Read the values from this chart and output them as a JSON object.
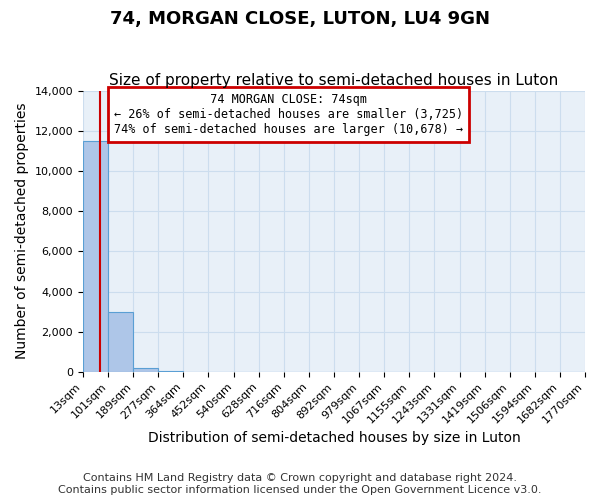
{
  "title": "74, MORGAN CLOSE, LUTON, LU4 9GN",
  "subtitle": "Size of property relative to semi-detached houses in Luton",
  "xlabel": "Distribution of semi-detached houses by size in Luton",
  "ylabel": "Number of semi-detached properties",
  "bin_edges": [
    13,
    101,
    189,
    277,
    364,
    452,
    540,
    628,
    716,
    804,
    892,
    979,
    1067,
    1155,
    1243,
    1331,
    1419,
    1506,
    1594,
    1682,
    1770
  ],
  "bin_heights": [
    11500,
    3000,
    200,
    30,
    10,
    5,
    3,
    2,
    2,
    1,
    1,
    1,
    1,
    1,
    0,
    0,
    0,
    0,
    0,
    0
  ],
  "bar_color": "#aec6e8",
  "bar_edge_color": "#5a9fd4",
  "property_size": 74,
  "property_label": "74 MORGAN CLOSE: 74sqm",
  "pct_smaller": 26,
  "n_smaller": 3725,
  "pct_larger": 74,
  "n_larger": 10678,
  "vline_color": "#cc0000",
  "annotation_box_color": "#cc0000",
  "ylim": [
    0,
    14000
  ],
  "yticks": [
    0,
    2000,
    4000,
    6000,
    8000,
    10000,
    12000,
    14000
  ],
  "footer1": "Contains HM Land Registry data © Crown copyright and database right 2024.",
  "footer2": "Contains public sector information licensed under the Open Government Licence v3.0.",
  "title_fontsize": 13,
  "subtitle_fontsize": 11,
  "axis_label_fontsize": 10,
  "tick_fontsize": 8,
  "footer_fontsize": 8,
  "background_color": "#ffffff",
  "grid_color": "#ccddee",
  "plot_bg_color": "#e8f0f8"
}
